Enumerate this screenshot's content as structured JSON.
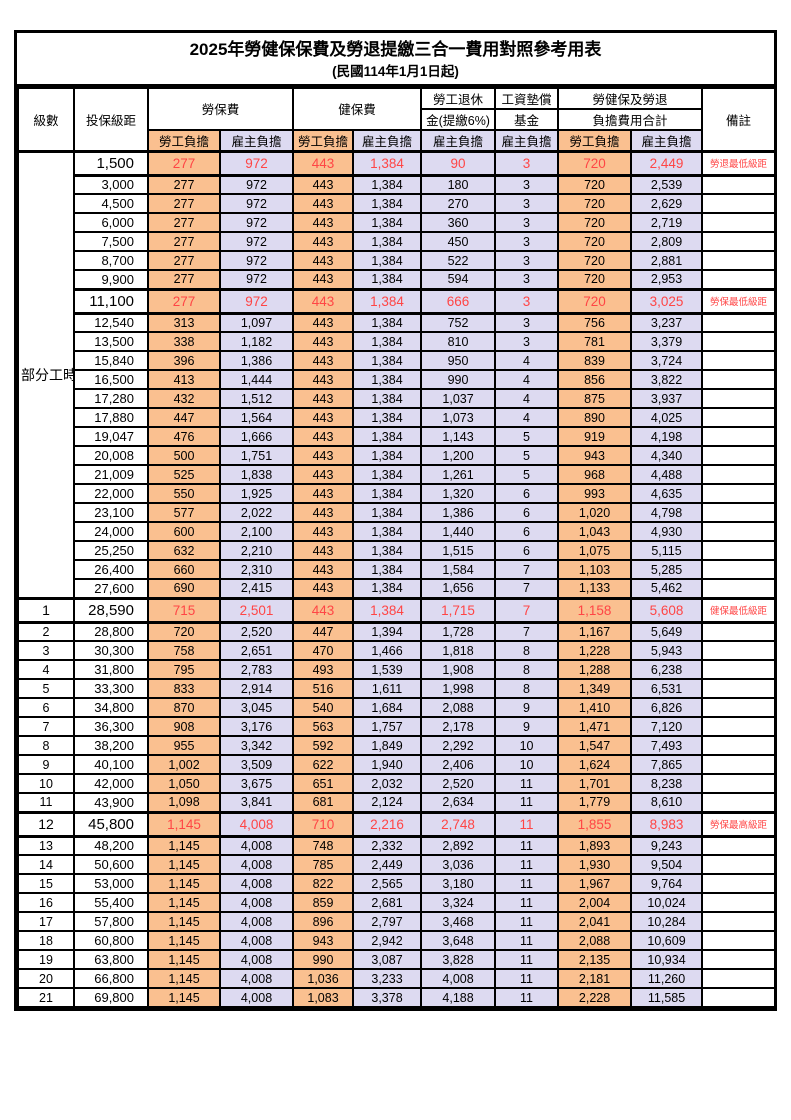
{
  "title": "2025年勞健保保費及勞退提繳三合一費用對照參考用表",
  "subtitle": "(民國114年1月1日起)",
  "colors": {
    "employee_share_bg": "#FAC090",
    "employer_share_bg": "#DDDAF1",
    "highlight_text": "#FF4545",
    "border": "#000000"
  },
  "header": {
    "level": "級數",
    "bracket": "投保級距",
    "labor_insurance": "勞保費",
    "health_insurance": "健保費",
    "pension_line1": "勞工退休",
    "pension_line2": "金(提繳6%)",
    "wage_fund_line1": "工資墊償",
    "wage_fund_line2": "基金",
    "total_line1": "勞健保及勞退",
    "total_line2": "負擔費用合計",
    "remark": "備註",
    "employee_share": "勞工負擔",
    "employer_share": "雇主負擔"
  },
  "part_time_label": "部分工時",
  "rows": [
    {
      "level": "",
      "bracket": "1,500",
      "values": [
        "277",
        "972",
        "443",
        "1,384",
        "90",
        "3",
        "720",
        "2,449"
      ],
      "remark": "勞退最低級距",
      "highlight": true
    },
    {
      "level": "",
      "bracket": "3,000",
      "values": [
        "277",
        "972",
        "443",
        "1,384",
        "180",
        "3",
        "720",
        "2,539"
      ],
      "remark": "",
      "highlight": false
    },
    {
      "level": "",
      "bracket": "4,500",
      "values": [
        "277",
        "972",
        "443",
        "1,384",
        "270",
        "3",
        "720",
        "2,629"
      ],
      "remark": "",
      "highlight": false
    },
    {
      "level": "",
      "bracket": "6,000",
      "values": [
        "277",
        "972",
        "443",
        "1,384",
        "360",
        "3",
        "720",
        "2,719"
      ],
      "remark": "",
      "highlight": false
    },
    {
      "level": "",
      "bracket": "7,500",
      "values": [
        "277",
        "972",
        "443",
        "1,384",
        "450",
        "3",
        "720",
        "2,809"
      ],
      "remark": "",
      "highlight": false
    },
    {
      "level": "",
      "bracket": "8,700",
      "values": [
        "277",
        "972",
        "443",
        "1,384",
        "522",
        "3",
        "720",
        "2,881"
      ],
      "remark": "",
      "highlight": false
    },
    {
      "level": "",
      "bracket": "9,900",
      "values": [
        "277",
        "972",
        "443",
        "1,384",
        "594",
        "3",
        "720",
        "2,953"
      ],
      "remark": "",
      "highlight": false
    },
    {
      "level": "",
      "bracket": "11,100",
      "values": [
        "277",
        "972",
        "443",
        "1,384",
        "666",
        "3",
        "720",
        "3,025"
      ],
      "remark": "勞保最低級距",
      "highlight": true
    },
    {
      "level": "",
      "bracket": "12,540",
      "values": [
        "313",
        "1,097",
        "443",
        "1,384",
        "752",
        "3",
        "756",
        "3,237"
      ],
      "remark": "",
      "highlight": false
    },
    {
      "level": "",
      "bracket": "13,500",
      "values": [
        "338",
        "1,182",
        "443",
        "1,384",
        "810",
        "3",
        "781",
        "3,379"
      ],
      "remark": "",
      "highlight": false
    },
    {
      "level": "",
      "bracket": "15,840",
      "values": [
        "396",
        "1,386",
        "443",
        "1,384",
        "950",
        "4",
        "839",
        "3,724"
      ],
      "remark": "",
      "highlight": false
    },
    {
      "level": "",
      "bracket": "16,500",
      "values": [
        "413",
        "1,444",
        "443",
        "1,384",
        "990",
        "4",
        "856",
        "3,822"
      ],
      "remark": "",
      "highlight": false
    },
    {
      "level": "",
      "bracket": "17,280",
      "values": [
        "432",
        "1,512",
        "443",
        "1,384",
        "1,037",
        "4",
        "875",
        "3,937"
      ],
      "remark": "",
      "highlight": false
    },
    {
      "level": "",
      "bracket": "17,880",
      "values": [
        "447",
        "1,564",
        "443",
        "1,384",
        "1,073",
        "4",
        "890",
        "4,025"
      ],
      "remark": "",
      "highlight": false
    },
    {
      "level": "",
      "bracket": "19,047",
      "values": [
        "476",
        "1,666",
        "443",
        "1,384",
        "1,143",
        "5",
        "919",
        "4,198"
      ],
      "remark": "",
      "highlight": false
    },
    {
      "level": "",
      "bracket": "20,008",
      "values": [
        "500",
        "1,751",
        "443",
        "1,384",
        "1,200",
        "5",
        "943",
        "4,340"
      ],
      "remark": "",
      "highlight": false
    },
    {
      "level": "",
      "bracket": "21,009",
      "values": [
        "525",
        "1,838",
        "443",
        "1,384",
        "1,261",
        "5",
        "968",
        "4,488"
      ],
      "remark": "",
      "highlight": false
    },
    {
      "level": "",
      "bracket": "22,000",
      "values": [
        "550",
        "1,925",
        "443",
        "1,384",
        "1,320",
        "6",
        "993",
        "4,635"
      ],
      "remark": "",
      "highlight": false
    },
    {
      "level": "",
      "bracket": "23,100",
      "values": [
        "577",
        "2,022",
        "443",
        "1,384",
        "1,386",
        "6",
        "1,020",
        "4,798"
      ],
      "remark": "",
      "highlight": false
    },
    {
      "level": "",
      "bracket": "24,000",
      "values": [
        "600",
        "2,100",
        "443",
        "1,384",
        "1,440",
        "6",
        "1,043",
        "4,930"
      ],
      "remark": "",
      "highlight": false
    },
    {
      "level": "",
      "bracket": "25,250",
      "values": [
        "632",
        "2,210",
        "443",
        "1,384",
        "1,515",
        "6",
        "1,075",
        "5,115"
      ],
      "remark": "",
      "highlight": false
    },
    {
      "level": "",
      "bracket": "26,400",
      "values": [
        "660",
        "2,310",
        "443",
        "1,384",
        "1,584",
        "7",
        "1,103",
        "5,285"
      ],
      "remark": "",
      "highlight": false
    },
    {
      "level": "",
      "bracket": "27,600",
      "values": [
        "690",
        "2,415",
        "443",
        "1,384",
        "1,656",
        "7",
        "1,133",
        "5,462"
      ],
      "remark": "",
      "highlight": false
    },
    {
      "level": "1",
      "bracket": "28,590",
      "values": [
        "715",
        "2,501",
        "443",
        "1,384",
        "1,715",
        "7",
        "1,158",
        "5,608"
      ],
      "remark": "健保最低級距",
      "highlight": true
    },
    {
      "level": "2",
      "bracket": "28,800",
      "values": [
        "720",
        "2,520",
        "447",
        "1,394",
        "1,728",
        "7",
        "1,167",
        "5,649"
      ],
      "remark": "",
      "highlight": false
    },
    {
      "level": "3",
      "bracket": "30,300",
      "values": [
        "758",
        "2,651",
        "470",
        "1,466",
        "1,818",
        "8",
        "1,228",
        "5,943"
      ],
      "remark": "",
      "highlight": false
    },
    {
      "level": "4",
      "bracket": "31,800",
      "values": [
        "795",
        "2,783",
        "493",
        "1,539",
        "1,908",
        "8",
        "1,288",
        "6,238"
      ],
      "remark": "",
      "highlight": false
    },
    {
      "level": "5",
      "bracket": "33,300",
      "values": [
        "833",
        "2,914",
        "516",
        "1,611",
        "1,998",
        "8",
        "1,349",
        "6,531"
      ],
      "remark": "",
      "highlight": false
    },
    {
      "level": "6",
      "bracket": "34,800",
      "values": [
        "870",
        "3,045",
        "540",
        "1,684",
        "2,088",
        "9",
        "1,410",
        "6,826"
      ],
      "remark": "",
      "highlight": false
    },
    {
      "level": "7",
      "bracket": "36,300",
      "values": [
        "908",
        "3,176",
        "563",
        "1,757",
        "2,178",
        "9",
        "1,471",
        "7,120"
      ],
      "remark": "",
      "highlight": false
    },
    {
      "level": "8",
      "bracket": "38,200",
      "values": [
        "955",
        "3,342",
        "592",
        "1,849",
        "2,292",
        "10",
        "1,547",
        "7,493"
      ],
      "remark": "",
      "highlight": false
    },
    {
      "level": "9",
      "bracket": "40,100",
      "values": [
        "1,002",
        "3,509",
        "622",
        "1,940",
        "2,406",
        "10",
        "1,624",
        "7,865"
      ],
      "remark": "",
      "highlight": false
    },
    {
      "level": "10",
      "bracket": "42,000",
      "values": [
        "1,050",
        "3,675",
        "651",
        "2,032",
        "2,520",
        "11",
        "1,701",
        "8,238"
      ],
      "remark": "",
      "highlight": false
    },
    {
      "level": "11",
      "bracket": "43,900",
      "values": [
        "1,098",
        "3,841",
        "681",
        "2,124",
        "2,634",
        "11",
        "1,779",
        "8,610"
      ],
      "remark": "",
      "highlight": false
    },
    {
      "level": "12",
      "bracket": "45,800",
      "values": [
        "1,145",
        "4,008",
        "710",
        "2,216",
        "2,748",
        "11",
        "1,855",
        "8,983"
      ],
      "remark": "勞保最高級距",
      "highlight": true
    },
    {
      "level": "13",
      "bracket": "48,200",
      "values": [
        "1,145",
        "4,008",
        "748",
        "2,332",
        "2,892",
        "11",
        "1,893",
        "9,243"
      ],
      "remark": "",
      "highlight": false
    },
    {
      "level": "14",
      "bracket": "50,600",
      "values": [
        "1,145",
        "4,008",
        "785",
        "2,449",
        "3,036",
        "11",
        "1,930",
        "9,504"
      ],
      "remark": "",
      "highlight": false
    },
    {
      "level": "15",
      "bracket": "53,000",
      "values": [
        "1,145",
        "4,008",
        "822",
        "2,565",
        "3,180",
        "11",
        "1,967",
        "9,764"
      ],
      "remark": "",
      "highlight": false
    },
    {
      "level": "16",
      "bracket": "55,400",
      "values": [
        "1,145",
        "4,008",
        "859",
        "2,681",
        "3,324",
        "11",
        "2,004",
        "10,024"
      ],
      "remark": "",
      "highlight": false
    },
    {
      "level": "17",
      "bracket": "57,800",
      "values": [
        "1,145",
        "4,008",
        "896",
        "2,797",
        "3,468",
        "11",
        "2,041",
        "10,284"
      ],
      "remark": "",
      "highlight": false
    },
    {
      "level": "18",
      "bracket": "60,800",
      "values": [
        "1,145",
        "4,008",
        "943",
        "2,942",
        "3,648",
        "11",
        "2,088",
        "10,609"
      ],
      "remark": "",
      "highlight": false
    },
    {
      "level": "19",
      "bracket": "63,800",
      "values": [
        "1,145",
        "4,008",
        "990",
        "3,087",
        "3,828",
        "11",
        "2,135",
        "10,934"
      ],
      "remark": "",
      "highlight": false
    },
    {
      "level": "20",
      "bracket": "66,800",
      "values": [
        "1,145",
        "4,008",
        "1,036",
        "3,233",
        "4,008",
        "11",
        "2,181",
        "11,260"
      ],
      "remark": "",
      "highlight": false
    },
    {
      "level": "21",
      "bracket": "69,800",
      "values": [
        "1,145",
        "4,008",
        "1,083",
        "3,378",
        "4,188",
        "11",
        "2,228",
        "11,585"
      ],
      "remark": "",
      "highlight": false
    }
  ]
}
